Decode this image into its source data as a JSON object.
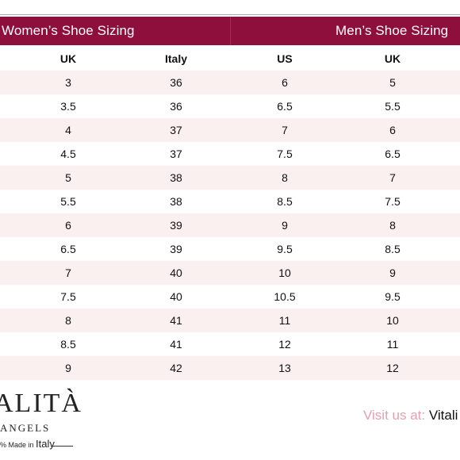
{
  "header": {
    "women_title": "Women’s Shoe Sizing",
    "men_title": "Men’s Shoe Sizing"
  },
  "columns": [
    "UK",
    "Italy",
    "US",
    "UK"
  ],
  "rows": [
    [
      "3",
      "36",
      "6",
      "5"
    ],
    [
      "3.5",
      "36",
      "6.5",
      "5.5"
    ],
    [
      "4",
      "37",
      "7",
      "6"
    ],
    [
      "4.5",
      "37",
      "7.5",
      "6.5"
    ],
    [
      "5",
      "38",
      "8",
      "7"
    ],
    [
      "5.5",
      "38",
      "8.5",
      "7.5"
    ],
    [
      "6",
      "39",
      "9",
      "8"
    ],
    [
      "6.5",
      "39",
      "9.5",
      "8.5"
    ],
    [
      "7",
      "40",
      "10",
      "9"
    ],
    [
      "7.5",
      "40",
      "10.5",
      "9.5"
    ],
    [
      "8",
      "41",
      "11",
      "10"
    ],
    [
      "8.5",
      "41",
      "12",
      "11"
    ],
    [
      "9",
      "42",
      "13",
      "12"
    ]
  ],
  "logo": {
    "brand": "ALITÀ",
    "sub": "ANGELS",
    "made_prefix": "% Made in ",
    "made_country": "Italy"
  },
  "footer": {
    "visit_label": "Visit us at: ",
    "visit_site": "Vitali"
  },
  "colors": {
    "header_bg": "#8e0f3b",
    "row_alt_bg": "#fbf0f0",
    "visit_label": "#e4a0ae"
  }
}
